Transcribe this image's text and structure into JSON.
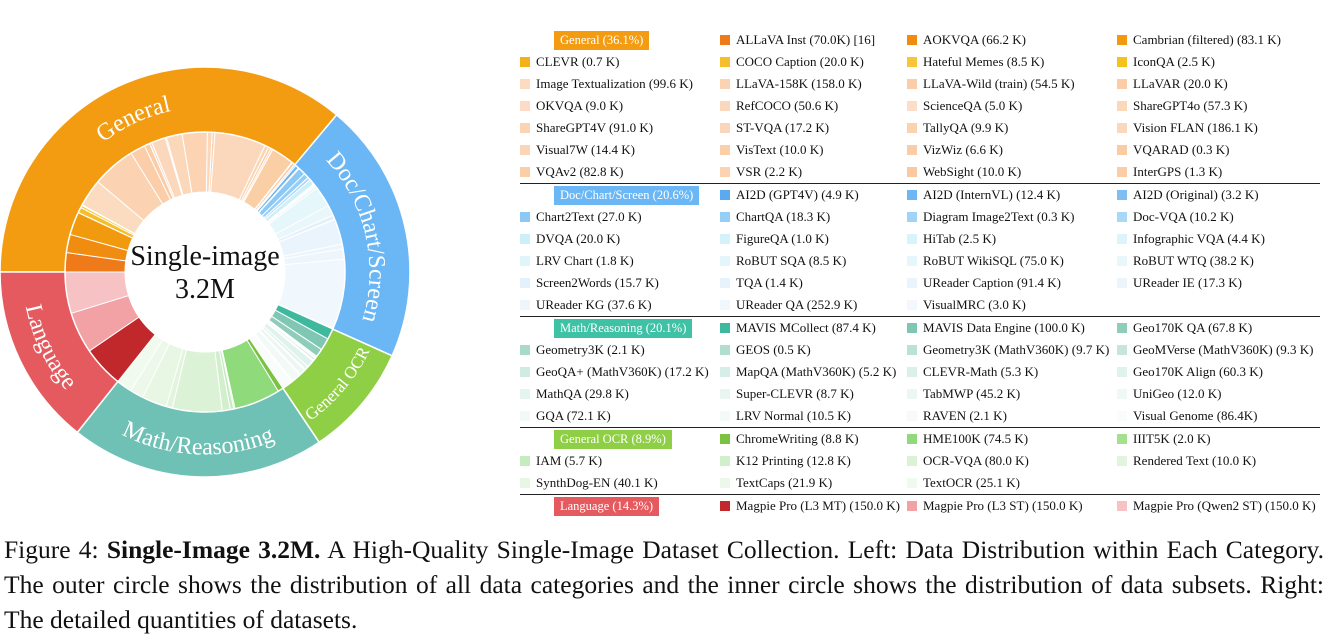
{
  "chart_data": {
    "type": "sunburst",
    "center_label": [
      "Single-image",
      "3.2M"
    ],
    "outer": [
      {
        "name": "General",
        "pct": 36.1,
        "color": "#F39C12"
      },
      {
        "name": "Doc/Chart/Screen",
        "pct": 20.6,
        "color": "#6BB7F5"
      },
      {
        "name": "General OCR",
        "pct": 8.9,
        "color": "#8FCF45"
      },
      {
        "name": "Math/Reasoning",
        "pct": 20.1,
        "color": "#6FC1B5"
      },
      {
        "name": "Language",
        "pct": 14.3,
        "color": "#E55A5E"
      }
    ]
  },
  "sections": [
    {
      "header": "General (36.1%)",
      "color": "#F39C12",
      "items": [
        {
          "label": "ALLaVA Inst (70.0K) [16]",
          "color": "#EF7A1A"
        },
        {
          "label": "AOKVQA (66.2 K)",
          "color": "#F08C0F"
        },
        {
          "label": "Cambrian (filtered) (83.1 K)",
          "color": "#F29A0E"
        },
        {
          "label": "CLEVR (0.7 K)",
          "color": "#F3B11A"
        },
        {
          "label": "COCO Caption (20.0 K)",
          "color": "#F5BE2A"
        },
        {
          "label": "Hateful Memes (8.5 K)",
          "color": "#F7C63A"
        },
        {
          "label": "IconQA (2.5 K)",
          "color": "#F4C21C"
        },
        {
          "label": "Image Textualization (99.6 K)",
          "color": "#FBDCC0"
        },
        {
          "label": "LLaVA-158K (158.0 K)",
          "color": "#FBD3B2"
        },
        {
          "label": "LLaVA-Wild (train) (54.5 K)",
          "color": "#FBCDA8"
        },
        {
          "label": "LLaVAR (20.0 K)",
          "color": "#FBCCA6"
        },
        {
          "label": "OKVQA (9.0 K)",
          "color": "#FCDCC6"
        },
        {
          "label": "RefCOCO (50.6 K)",
          "color": "#FBD7BC"
        },
        {
          "label": "ScienceQA (5.0 K)",
          "color": "#FCDDC7"
        },
        {
          "label": "ShareGPT4o (57.3 K)",
          "color": "#FBD8BA"
        },
        {
          "label": "ShareGPT4V (91.0 K)",
          "color": "#FCD3B3"
        },
        {
          "label": "ST-VQA (17.2 K)",
          "color": "#FBD6BA"
        },
        {
          "label": "TallyQA (9.9 K)",
          "color": "#FBD2AE"
        },
        {
          "label": "Vision FLAN (186.1 K)",
          "color": "#FBD8BB"
        },
        {
          "label": "Visual7W (14.4 K)",
          "color": "#FBD5B6"
        },
        {
          "label": "VisText (10.0 K)",
          "color": "#FBCFA8"
        },
        {
          "label": "VizWiz (6.6 K)",
          "color": "#FBCDA6"
        },
        {
          "label": "VQARAD (0.3 K)",
          "color": "#FBCBA4"
        },
        {
          "label": "VQAv2 (82.8 K)",
          "color": "#FBCFA6"
        },
        {
          "label": "VSR (2.2 K)",
          "color": "#FBD3AF"
        },
        {
          "label": "WebSight (10.0 K)",
          "color": "#FBC99F"
        },
        {
          "label": "InterGPS (1.3 K)",
          "color": "#FBCDA4"
        }
      ]
    },
    {
      "header": "Doc/Chart/Screen (20.6%)",
      "color": "#6BB7F5",
      "items": [
        {
          "label": "AI2D (GPT4V) (4.9 K)",
          "color": "#5BA9F0"
        },
        {
          "label": "AI2D (InternVL) (12.4 K)",
          "color": "#6FB6F3"
        },
        {
          "label": "AI2D (Original) (3.2 K)",
          "color": "#7FBEF3"
        },
        {
          "label": "Chart2Text (27.0 K)",
          "color": "#8CC8F5"
        },
        {
          "label": "ChartQA (18.3 K)",
          "color": "#95CEF6"
        },
        {
          "label": "Diagram Image2Text (0.3 K)",
          "color": "#9FD3F7"
        },
        {
          "label": "Doc-VQA (10.2 K)",
          "color": "#A8D8F7"
        },
        {
          "label": "DVQA (20.0 K)",
          "color": "#CDEFF8"
        },
        {
          "label": "FigureQA (1.0 K)",
          "color": "#D4F2F9"
        },
        {
          "label": "HiTab (2.5 K)",
          "color": "#D8F3F9"
        },
        {
          "label": "Infographic VQA (4.4 K)",
          "color": "#DCF4FA"
        },
        {
          "label": "LRV Chart (1.8 K)",
          "color": "#E0F5FA"
        },
        {
          "label": "RoBUT SQA (8.5 K)",
          "color": "#E3F6FA"
        },
        {
          "label": "RoBUT WikiSQL (75.0 K)",
          "color": "#E6F7FB"
        },
        {
          "label": "RoBUT WTQ (38.2 K)",
          "color": "#E9F7FB"
        },
        {
          "label": "Screen2Words (15.7 K)",
          "color": "#E3F1FC"
        },
        {
          "label": "TQA (1.4 K)",
          "color": "#E6F3FC"
        },
        {
          "label": "UReader Caption (91.4 K)",
          "color": "#E9F4FC"
        },
        {
          "label": "UReader IE (17.3 K)",
          "color": "#ECF5FC"
        },
        {
          "label": "UReader KG (37.6 K)",
          "color": "#EEF6FC"
        },
        {
          "label": "UReader QA (252.9 K)",
          "color": "#F0F7FD"
        },
        {
          "label": "VisualMRC (3.0 K)",
          "color": "#F2F8FD"
        }
      ]
    },
    {
      "header": "Math/Reasoning (20.1%)",
      "color": "#3FC1A6",
      "items": [
        {
          "label": "MAVIS MCollect (87.4 K)",
          "color": "#3FB99E"
        },
        {
          "label": "MAVIS Data Engine (100.0 K)",
          "color": "#7FC7B2"
        },
        {
          "label": "Geo170K QA (67.8 K)",
          "color": "#8FCDBB"
        },
        {
          "label": "Geometry3K (2.1 K)",
          "color": "#A8D9CB"
        },
        {
          "label": "GEOS (0.5 K)",
          "color": "#B2DDD1"
        },
        {
          "label": "Geometry3K (MathV360K) (9.7 K)",
          "color": "#BCE2D7"
        },
        {
          "label": "GeoMVerse (MathV360K) (9.3 K)",
          "color": "#C6E6DD"
        },
        {
          "label": "GeoQA+ (MathV360K) (17.2 K)",
          "color": "#D0EBE3"
        },
        {
          "label": "MapQA (MathV360K) (5.2 K)",
          "color": "#D6EEE7"
        },
        {
          "label": "CLEVR-Math (5.3 K)",
          "color": "#DCF0EA"
        },
        {
          "label": "Geo170K Align (60.3 K)",
          "color": "#E0F2EC"
        },
        {
          "label": "MathQA (29.8 K)",
          "color": "#E4F4EF"
        },
        {
          "label": "Super-CLEVR (8.7 K)",
          "color": "#E8F5F1"
        },
        {
          "label": "TabMWP (45.2 K)",
          "color": "#ECF7F3"
        },
        {
          "label": "UniGeo (12.0 K)",
          "color": "#EFF8F5"
        },
        {
          "label": "GQA (72.1 K)",
          "color": "#F2F9F7"
        },
        {
          "label": "LRV Normal (10.5 K)",
          "color": "#F4FAF8"
        },
        {
          "label": "RAVEN (2.1 K)",
          "color": "#F6FBF9"
        },
        {
          "label": "Visual Genome (86.4K)",
          "color": "#F8FCFA"
        }
      ]
    },
    {
      "header": "General OCR (8.9%)",
      "color": "#8FCF45",
      "items": [
        {
          "label": "ChromeWriting (8.8 K)",
          "color": "#7CC242"
        },
        {
          "label": "HME100K (74.5 K)",
          "color": "#8FDA7A"
        },
        {
          "label": "IIIT5K (2.0 K)",
          "color": "#A4E08E"
        },
        {
          "label": "IAM (5.7 K)",
          "color": "#C6EBC0"
        },
        {
          "label": "K12 Printing (12.8 K)",
          "color": "#D2EFCC"
        },
        {
          "label": "OCR-VQA (80.0 K)",
          "color": "#DBF2D6"
        },
        {
          "label": "Rendered Text (10.0 K)",
          "color": "#E2F4DE"
        },
        {
          "label": "SynthDog-EN (40.1 K)",
          "color": "#E8F6E4"
        },
        {
          "label": "TextCaps (21.9 K)",
          "color": "#EDF8EA"
        },
        {
          "label": "TextOCR (25.1 K)",
          "color": "#F1FAEF"
        }
      ]
    },
    {
      "header": "Language (14.3%)",
      "color": "#E55A5E",
      "items": [
        {
          "label": "Magpie Pro (L3 MT) (150.0 K)",
          "color": "#C0282C"
        },
        {
          "label": "Magpie Pro (L3 ST) (150.0 K)",
          "color": "#F2A1A4"
        },
        {
          "label": "Magpie Pro (Qwen2 ST) (150.0 K)",
          "color": "#F7C2C4"
        }
      ]
    }
  ],
  "caption": {
    "prefix": "Figure 4: ",
    "bold": "Single-Image 3.2M.",
    "text": " A High-Quality Single-Image Dataset Collection. Left: Data Distribution within Each Category. The outer circle shows the distribution of all data categories and the inner circle shows the distribution of data subsets. Right: The detailed quantities of datasets."
  }
}
